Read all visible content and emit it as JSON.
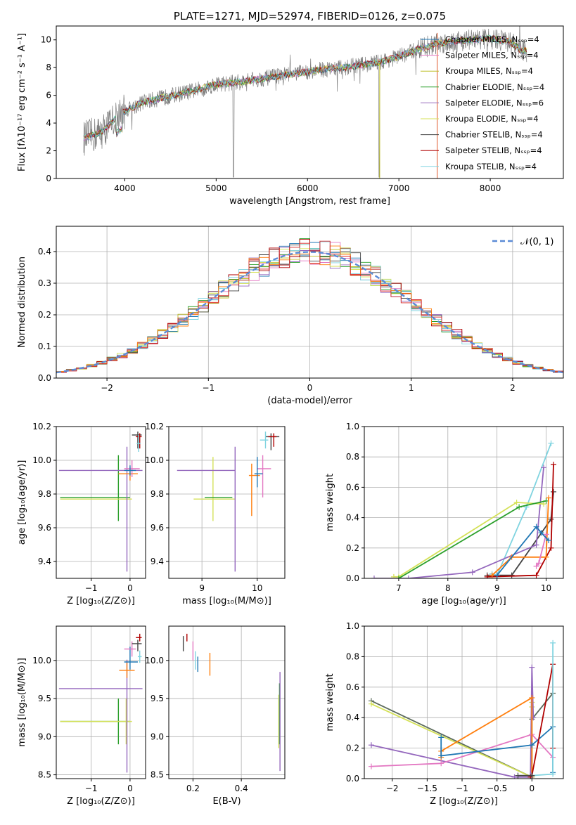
{
  "chart_data": [
    {
      "type": "line",
      "title": "PLATE=1271, MJD=52974, FIBERID=0126, z=0.075",
      "xlabel": "wavelength [Angstrom, rest frame]",
      "ylabel": "Flux [fλ10⁻¹⁷ erg cm⁻² s⁻¹ A⁻¹]",
      "xlim": [
        3250,
        8800
      ],
      "ylim": [
        0,
        11
      ],
      "xticks": [
        4000,
        5000,
        6000,
        7000,
        8000
      ],
      "yticks": [
        0,
        2,
        4,
        6,
        8,
        10
      ],
      "legend_position": "right",
      "legend": [
        {
          "label": "Chabrier MILES, Nₛₛₚ=4",
          "color": "#1f77b4"
        },
        {
          "label": "Salpeter MILES, Nₛₛₚ=4",
          "color": "#e377c2"
        },
        {
          "label": "Kroupa MILES, Nₛₛₚ=4",
          "color": "#bcbd22"
        },
        {
          "label": "Chabrier ELODIE, Nₛₛₚ=4",
          "color": "#2ca02c"
        },
        {
          "label": "Salpeter ELODIE, Nₛₛₚ=6",
          "color": "#9467bd"
        },
        {
          "label": "Kroupa ELODIE, Nₛₛₚ=4",
          "color": "#d4e157"
        },
        {
          "label": "Chabrier STELIB, Nₛₛₚ=4",
          "color": "#444444"
        },
        {
          "label": "Salpeter STELIB, Nₛₛₚ=4",
          "color": "#b00000"
        },
        {
          "label": "Kroupa STELIB, Nₛₛₚ=4",
          "color": "#80d4e0"
        }
      ],
      "model_continuum": {
        "x": [
          3550,
          3650,
          3750,
          3850,
          3950,
          4050,
          4200,
          4400,
          4600,
          4800,
          5000,
          5200,
          5400,
          5600,
          5800,
          6000,
          6200,
          6400,
          6600,
          6800,
          7000,
          7200,
          7400,
          7600,
          7800,
          8000,
          8200,
          8350
        ],
        "y": [
          2.9,
          3.1,
          3.4,
          4.0,
          4.7,
          5.0,
          5.5,
          5.8,
          6.1,
          6.4,
          6.8,
          6.9,
          7.1,
          7.3,
          7.5,
          7.7,
          7.9,
          8.0,
          8.2,
          8.4,
          8.8,
          9.3,
          9.7,
          9.9,
          10.0,
          10.1,
          9.9,
          9.2
        ]
      }
    },
    {
      "type": "step",
      "xlabel": "(data-model)/error",
      "ylabel": "Normed distribution",
      "xlim": [
        -2.5,
        2.5
      ],
      "ylim": [
        0,
        0.48
      ],
      "xticks": [
        -2,
        -1,
        0,
        1,
        2
      ],
      "yticks": [
        0.0,
        0.1,
        0.2,
        0.3,
        0.4
      ],
      "legend": [
        {
          "label": "𝒩(0, 1)",
          "color": "#5b8bd6"
        }
      ],
      "legend_position": "top-right",
      "bin_width": 0.1
    },
    {
      "type": "scatter",
      "xlabel": "Z [log₁₀(Z/Z⊙)]",
      "ylabel": "age  [log₁₀(age/yr)]",
      "xlim": [
        -1.9,
        0.4
      ],
      "ylim": [
        9.3,
        10.2
      ],
      "xticks": [
        -1,
        0
      ],
      "yticks": [
        9.4,
        9.6,
        9.8,
        10.0,
        10.2
      ],
      "points": [
        {
          "x": -0.3,
          "y": 9.78,
          "xerr": [
            1.5,
            0.3
          ],
          "yerr": [
            0.14,
            0.25
          ],
          "color": "#2ca02c"
        },
        {
          "x": -0.1,
          "y": 9.77,
          "xerr": [
            1.7,
            0.15
          ],
          "yerr": [
            0.0,
            0.0
          ],
          "color": "#d4e157"
        },
        {
          "x": -0.08,
          "y": 9.94,
          "xerr": [
            1.75,
            0.4
          ],
          "yerr": [
            0.6,
            0.14
          ],
          "color": "#9467bd"
        },
        {
          "x": 0.0,
          "y": 9.92,
          "xerr": [
            0.3,
            0.2
          ],
          "yerr": [
            0.04,
            0.04
          ],
          "color": "#ff7f0e"
        },
        {
          "x": 0.05,
          "y": 9.95,
          "xerr": [
            0.2,
            0.2
          ],
          "yerr": [
            0.05,
            0.05
          ],
          "color": "#e377c2"
        },
        {
          "x": 0.0,
          "y": 9.94,
          "xerr": [
            0.15,
            0.15
          ],
          "yerr": [
            0.03,
            0.03
          ],
          "color": "#1f77b4"
        },
        {
          "x": 0.2,
          "y": 10.15,
          "xerr": [
            0.15,
            0.1
          ],
          "yerr": [
            0.08,
            0.02
          ],
          "color": "#444444"
        },
        {
          "x": 0.25,
          "y": 10.14,
          "xerr": [
            0.1,
            0.05
          ],
          "yerr": [
            0.07,
            0.02
          ],
          "color": "#b00000"
        },
        {
          "x": 0.22,
          "y": 10.1,
          "xerr": [
            0.05,
            0.05
          ],
          "yerr": [
            0.05,
            0.05
          ],
          "color": "#80d4e0"
        }
      ]
    },
    {
      "type": "scatter",
      "xlabel": "mass [log₁₀(M/M⊙)]",
      "ylabel": "",
      "xlim": [
        8.4,
        10.5
      ],
      "ylim": [
        9.3,
        10.2
      ],
      "xticks": [
        9,
        10
      ],
      "yticks": [
        9.4,
        9.6,
        9.8,
        10.0,
        10.2
      ],
      "points": [
        {
          "x": 9.2,
          "y": 9.77,
          "xerr": [
            0.35,
            0.4
          ],
          "yerr": [
            0.13,
            0.25
          ],
          "color": "#d4e157"
        },
        {
          "x": 9.1,
          "y": 9.78,
          "xerr": [
            0.05,
            0.45
          ],
          "yerr": [
            0.0,
            0.0
          ],
          "color": "#2ca02c"
        },
        {
          "x": 9.6,
          "y": 9.94,
          "xerr": [
            1.05,
            0.0
          ],
          "yerr": [
            0.6,
            0.14
          ],
          "color": "#9467bd"
        },
        {
          "x": 9.9,
          "y": 9.91,
          "xerr": [
            0.05,
            0.15
          ],
          "yerr": [
            0.24,
            0.07
          ],
          "color": "#ff7f0e"
        },
        {
          "x": 10.1,
          "y": 9.95,
          "xerr": [
            0.1,
            0.15
          ],
          "yerr": [
            0.17,
            0.08
          ],
          "color": "#e377c2"
        },
        {
          "x": 10.0,
          "y": 9.92,
          "xerr": [
            0.05,
            0.1
          ],
          "yerr": [
            0.08,
            0.1
          ],
          "color": "#1f77b4"
        },
        {
          "x": 10.25,
          "y": 10.14,
          "xerr": [
            0.1,
            0.15
          ],
          "yerr": [
            0.08,
            0.02
          ],
          "color": "#444444"
        },
        {
          "x": 10.3,
          "y": 10.14,
          "xerr": [
            0.1,
            0.05
          ],
          "yerr": [
            0.06,
            0.02
          ],
          "color": "#b00000"
        },
        {
          "x": 10.15,
          "y": 10.12,
          "xerr": [
            0.1,
            0.05
          ],
          "yerr": [
            0.05,
            0.05
          ],
          "color": "#80d4e0"
        }
      ]
    },
    {
      "type": "line",
      "xlabel": "age  [log₁₀(age/yr)]",
      "ylabel": "mass weight",
      "xlim": [
        6.3,
        10.35
      ],
      "ylim": [
        0,
        1.0
      ],
      "xticks": [
        7,
        8,
        9,
        10
      ],
      "yticks": [
        0.0,
        0.2,
        0.4,
        0.6,
        0.8,
        1.0
      ],
      "series": [
        {
          "color": "#444444",
          "x": [
            8.8,
            9.3,
            10.1,
            10.15
          ],
          "y": [
            0.02,
            0.02,
            0.39,
            0.57
          ]
        },
        {
          "color": "#b00000",
          "x": [
            8.8,
            9.8,
            10.1,
            10.15
          ],
          "y": [
            0.01,
            0.02,
            0.2,
            0.75
          ]
        },
        {
          "color": "#80d4e0",
          "x": [
            8.9,
            9.0,
            9.6,
            10.1
          ],
          "y": [
            0.03,
            0.02,
            0.47,
            0.89
          ]
        },
        {
          "color": "#9467bd",
          "x": [
            6.5,
            7.2,
            8.5,
            9.8,
            9.95
          ],
          "y": [
            0.0,
            0.0,
            0.04,
            0.22,
            0.73
          ]
        },
        {
          "color": "#d4e157",
          "x": [
            6.9,
            7.0,
            9.4,
            9.95
          ],
          "y": [
            0.01,
            0.01,
            0.5,
            0.49
          ]
        },
        {
          "color": "#2ca02c",
          "x": [
            7.0,
            9.45,
            10.0
          ],
          "y": [
            0.0,
            0.47,
            0.51
          ]
        },
        {
          "color": "#ff7f0e",
          "x": [
            8.9,
            9.3,
            10.0,
            10.05
          ],
          "y": [
            0.02,
            0.14,
            0.14,
            0.53
          ]
        },
        {
          "color": "#e377c2",
          "x": [
            9.8,
            9.85,
            10.0
          ],
          "y": [
            0.08,
            0.1,
            0.29
          ]
        },
        {
          "color": "#1f77b4",
          "x": [
            9.0,
            9.8,
            9.9,
            10.05
          ],
          "y": [
            0.02,
            0.34,
            0.3,
            0.25
          ]
        }
      ]
    },
    {
      "type": "scatter",
      "xlabel": "Z [log₁₀(Z/Z⊙)]",
      "ylabel": "mass [log₁₀(M/M⊙)]",
      "xlim": [
        -1.9,
        0.4
      ],
      "ylim": [
        8.45,
        10.45
      ],
      "xticks": [
        -1,
        0
      ],
      "yticks": [
        8.5,
        9.0,
        9.5,
        10.0
      ],
      "points": [
        {
          "x": -0.3,
          "y": 9.2,
          "xerr": [
            1.5,
            0.3
          ],
          "yerr": [
            0.3,
            0.3
          ],
          "color": "#2ca02c"
        },
        {
          "x": -0.1,
          "y": 9.2,
          "xerr": [
            1.7,
            0.15
          ],
          "yerr": [
            0.3,
            0.3
          ],
          "color": "#d4e157"
        },
        {
          "x": -0.08,
          "y": 9.63,
          "xerr": [
            1.75,
            0.4
          ],
          "yerr": [
            1.1,
            0.38
          ],
          "color": "#9467bd"
        },
        {
          "x": -0.08,
          "y": 9.87,
          "xerr": [
            0.2,
            0.2
          ],
          "yerr": [
            0.1,
            0.1
          ],
          "color": "#ff7f0e"
        },
        {
          "x": 0.0,
          "y": 9.98,
          "xerr": [
            0.15,
            0.2
          ],
          "yerr": [
            0.1,
            0.2
          ],
          "color": "#1f77b4"
        },
        {
          "x": 0.05,
          "y": 10.15,
          "xerr": [
            0.2,
            0.1
          ],
          "yerr": [
            0.1,
            0.1
          ],
          "color": "#e377c2"
        },
        {
          "x": 0.2,
          "y": 10.22,
          "xerr": [
            0.15,
            0.1
          ],
          "yerr": [
            0.1,
            0.05
          ],
          "color": "#444444"
        },
        {
          "x": 0.25,
          "y": 10.3,
          "xerr": [
            0.1,
            0.05
          ],
          "yerr": [
            0.05,
            0.05
          ],
          "color": "#b00000"
        },
        {
          "x": 0.25,
          "y": 10.05,
          "xerr": [
            0.05,
            0.05
          ],
          "yerr": [
            0.08,
            0.08
          ],
          "color": "#80d4e0"
        }
      ]
    },
    {
      "type": "scatter",
      "xlabel": "E(B-V)",
      "ylabel": "",
      "xlim": [
        0.1,
        0.58
      ],
      "ylim": [
        8.45,
        10.45
      ],
      "xticks": [
        0.2,
        0.4
      ],
      "yticks": [
        8.5,
        9.0,
        9.5,
        10.0
      ],
      "points": [
        {
          "x": 0.16,
          "y": 10.22,
          "yerr": [
            0.1,
            0.1
          ],
          "color": "#444444"
        },
        {
          "x": 0.175,
          "y": 10.3,
          "yerr": [
            0.05,
            0.05
          ],
          "color": "#b00000"
        },
        {
          "x": 0.2,
          "y": 10.15,
          "yerr": [
            0.15,
            0.1
          ],
          "color": "#e377c2"
        },
        {
          "x": 0.21,
          "y": 10.0,
          "yerr": [
            0.12,
            0.12
          ],
          "color": "#80d4e0"
        },
        {
          "x": 0.22,
          "y": 9.95,
          "yerr": [
            0.1,
            0.1
          ],
          "color": "#1f77b4"
        },
        {
          "x": 0.27,
          "y": 9.95,
          "yerr": [
            0.15,
            0.15
          ],
          "color": "#ff7f0e"
        },
        {
          "x": 0.555,
          "y": 9.2,
          "yerr": [
            0.35,
            0.35
          ],
          "color": "#d4e157"
        },
        {
          "x": 0.558,
          "y": 9.3,
          "yerr": [
            0.4,
            0.4
          ],
          "color": "#2ca02c"
        },
        {
          "x": 0.56,
          "y": 9.2,
          "yerr": [
            0.65,
            0.65
          ],
          "color": "#9467bd"
        }
      ]
    },
    {
      "type": "line",
      "xlabel": "Z [log₁₀(Z/Z⊙)]",
      "ylabel": "mass weight",
      "xlim": [
        -2.4,
        0.45
      ],
      "ylim": [
        0,
        1.0
      ],
      "xticks": [
        -2.0,
        -1.5,
        -1.0,
        -0.5,
        0.0
      ],
      "yticks": [
        0.0,
        0.2,
        0.4,
        0.6,
        0.8,
        1.0
      ],
      "series": [
        {
          "color": "#5c6b5c",
          "x": [
            -2.3,
            0.0,
            0.0,
            0.3
          ],
          "y": [
            0.51,
            0.01,
            0.39,
            0.56
          ]
        },
        {
          "color": "#d4e157",
          "x": [
            -2.3,
            0.0,
            0.0,
            0.0
          ],
          "y": [
            0.49,
            0.01,
            0.5,
            0.47
          ]
        },
        {
          "color": "#9467bd",
          "x": [
            -2.3,
            -0.25,
            -0.02,
            0.0,
            0.02
          ],
          "y": [
            0.22,
            0.01,
            0.01,
            0.73,
            0.4
          ]
        },
        {
          "color": "#e377c2",
          "x": [
            -2.3,
            -1.3,
            0.0,
            0.3
          ],
          "y": [
            0.08,
            0.1,
            0.29,
            0.14
          ]
        },
        {
          "color": "#ff7f0e",
          "x": [
            -1.3,
            -1.3,
            0.0,
            0.0
          ],
          "y": [
            0.14,
            0.18,
            0.53,
            0.02
          ]
        },
        {
          "color": "#1f77b4",
          "x": [
            -1.3,
            -1.3,
            0.0,
            0.3,
            0.3
          ],
          "y": [
            0.27,
            0.15,
            0.22,
            0.34,
            0.04
          ]
        },
        {
          "color": "#b00000",
          "x": [
            -0.02,
            0.0,
            0.3,
            0.3
          ],
          "y": [
            0.01,
            0.02,
            0.75,
            0.2
          ]
        },
        {
          "color": "#80d4e0",
          "x": [
            0.0,
            0.3,
            0.3
          ],
          "y": [
            0.02,
            0.03,
            0.89
          ]
        },
        {
          "color": "#444444",
          "x": [
            -0.2,
            0.0
          ],
          "y": [
            0.02,
            0.02
          ]
        }
      ]
    }
  ]
}
